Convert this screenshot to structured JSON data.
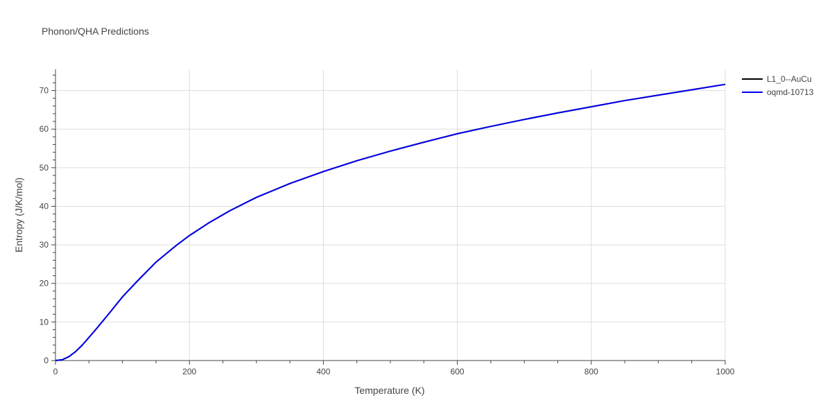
{
  "chart_data": {
    "type": "line",
    "title": "Phonon/QHA Predictions",
    "xlabel": "Temperature (K)",
    "ylabel": "Entropy (J/K/mol)",
    "xlim": [
      0,
      1000
    ],
    "ylim": [
      0,
      75.5
    ],
    "xticks": [
      0,
      200,
      400,
      600,
      800,
      1000
    ],
    "yticks": [
      0,
      10,
      20,
      30,
      40,
      50,
      60,
      70
    ],
    "grid": true,
    "legend_position": "top-right",
    "series": [
      {
        "name": "L1_0--AuCu",
        "color": "#000000",
        "x": [
          0,
          10,
          20,
          30,
          40,
          60,
          80,
          100,
          120,
          150,
          180,
          200,
          230,
          260,
          300,
          350,
          400,
          450,
          500,
          550,
          600,
          650,
          700,
          750,
          800,
          850,
          900,
          950,
          1000
        ],
        "y": [
          0,
          0.2,
          1.0,
          2.3,
          4.0,
          8.0,
          12.2,
          16.5,
          20.2,
          25.5,
          29.8,
          32.4,
          35.8,
          38.8,
          42.3,
          45.9,
          49.0,
          51.8,
          54.3,
          56.6,
          58.8,
          60.7,
          62.5,
          64.2,
          65.8,
          67.4,
          68.8,
          70.2,
          71.6
        ]
      },
      {
        "name": "oqmd-10713",
        "color": "#0000ee",
        "x": [
          0,
          10,
          20,
          30,
          40,
          60,
          80,
          100,
          120,
          150,
          180,
          200,
          230,
          260,
          300,
          350,
          400,
          450,
          500,
          550,
          600,
          650,
          700,
          750,
          800,
          850,
          900,
          950,
          1000
        ],
        "y": [
          0,
          0.2,
          1.0,
          2.3,
          4.0,
          8.0,
          12.2,
          16.5,
          20.2,
          25.5,
          29.8,
          32.4,
          35.8,
          38.8,
          42.3,
          45.9,
          49.0,
          51.8,
          54.3,
          56.6,
          58.8,
          60.7,
          62.5,
          64.2,
          65.8,
          67.4,
          68.8,
          70.2,
          71.6
        ]
      }
    ]
  }
}
